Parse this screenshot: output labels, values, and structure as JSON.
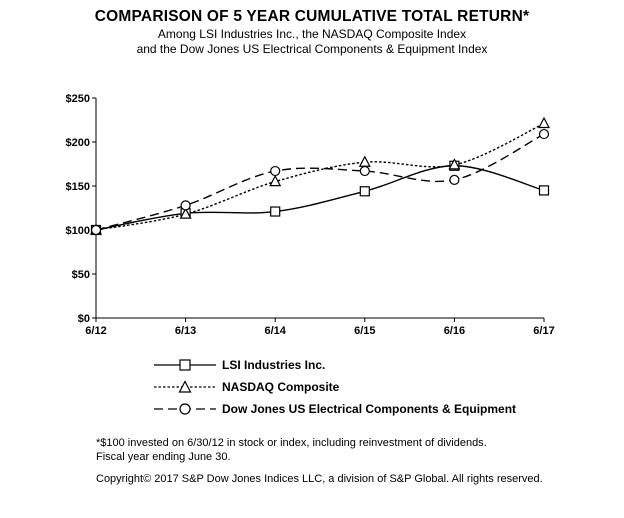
{
  "header": {
    "title": "COMPARISON OF 5 YEAR CUMULATIVE TOTAL RETURN*",
    "subtitle_1": "Among LSI Industries Inc., the NASDAQ Composite Index",
    "subtitle_2": "and the Dow Jones US Electrical Components & Equipment Index"
  },
  "chart_data": {
    "type": "line",
    "title": "COMPARISON OF 5 YEAR CUMULATIVE TOTAL RETURN*",
    "subtitle": "Among LSI Industries Inc., the NASDAQ Composite Index and the Dow Jones US Electrical Components & Equipment Index",
    "xlabel": "",
    "ylabel": "",
    "categories": [
      "6/12",
      "6/13",
      "6/14",
      "6/15",
      "6/16",
      "6/17"
    ],
    "y_ticks": [
      "$0",
      "$50",
      "$100",
      "$150",
      "$200",
      "$250"
    ],
    "ylim": [
      0,
      250
    ],
    "grid": false,
    "legend_position": "bottom",
    "series": [
      {
        "name": "LSI Industries Inc.",
        "values": [
          100,
          119,
          121,
          144,
          173,
          145
        ],
        "marker": "square",
        "line_style": "solid",
        "color": "#000000"
      },
      {
        "name": "NASDAQ Composite",
        "values": [
          100,
          118,
          155,
          177,
          174,
          221
        ],
        "marker": "triangle",
        "line_style": "dotted",
        "color": "#000000"
      },
      {
        "name": "Dow Jones US Electrical Components & Equipment",
        "values": [
          100,
          128,
          167,
          167,
          157,
          209
        ],
        "marker": "circle",
        "line_style": "dashed",
        "color": "#000000"
      }
    ]
  },
  "footnotes": {
    "note_1": "*$100 invested on 6/30/12 in stock or index, including reinvestment of dividends.",
    "note_2": "Fiscal year ending June 30.",
    "copyright": "Copyright© 2017 S&P Dow Jones Indices LLC, a division of S&P Global. All rights reserved."
  }
}
